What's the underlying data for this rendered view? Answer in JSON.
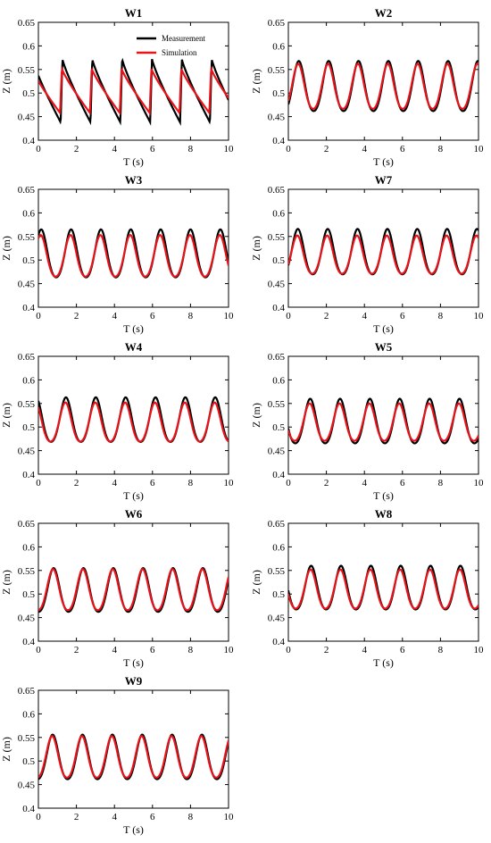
{
  "colors": {
    "measurement": "#000000",
    "simulation": "#e8141a"
  },
  "legend": {
    "measurement_label": "Measurement",
    "simulation_label": "Simulation"
  },
  "chart_data": [
    {
      "type": "line",
      "title": "W1",
      "xlabel": "T (s)",
      "ylabel": "Z (m)",
      "xlim": [
        0,
        10
      ],
      "ylim": [
        0.4,
        0.65
      ],
      "xticks": [
        "0",
        "2",
        "4",
        "6",
        "8",
        "10"
      ],
      "yticks": [
        "0.4",
        "0.45",
        "0.5",
        "0.55",
        "0.6",
        "0.65"
      ],
      "period": 1.57,
      "phase": 1.17,
      "waveform": "sawtooth",
      "series": [
        {
          "name": "Measurement",
          "crest": 0.572,
          "trough": 0.438
        },
        {
          "name": "Simulation",
          "crest": 0.552,
          "trough": 0.458
        }
      ]
    },
    {
      "type": "line",
      "title": "W2",
      "xlabel": "T (s)",
      "ylabel": "Z (m)",
      "xlim": [
        0,
        10
      ],
      "ylim": [
        0.4,
        0.65
      ],
      "xticks": [
        "0",
        "2",
        "4",
        "6",
        "8",
        "10"
      ],
      "yticks": [
        "0.4",
        "0.45",
        "0.5",
        "0.55",
        "0.6",
        "0.65"
      ],
      "period": 1.57,
      "phase": 0.55,
      "waveform": "wave",
      "series": [
        {
          "name": "Measurement",
          "crest": 0.568,
          "trough": 0.45
        },
        {
          "name": "Simulation",
          "crest": 0.562,
          "trough": 0.456
        }
      ]
    },
    {
      "type": "line",
      "title": "W3",
      "xlabel": "T (s)",
      "ylabel": "Z (m)",
      "xlim": [
        0,
        10
      ],
      "ylim": [
        0.4,
        0.65
      ],
      "xticks": [
        "0",
        "2",
        "4",
        "6",
        "8",
        "10"
      ],
      "yticks": [
        "0.4",
        "0.45",
        "0.5",
        "0.55",
        "0.6",
        "0.65"
      ],
      "period": 1.57,
      "phase": 0.15,
      "waveform": "wave",
      "series": [
        {
          "name": "Measurement",
          "crest": 0.565,
          "trough": 0.452
        },
        {
          "name": "Simulation",
          "crest": 0.553,
          "trough": 0.455
        }
      ]
    },
    {
      "type": "line",
      "title": "W7",
      "xlabel": "T (s)",
      "ylabel": "Z (m)",
      "xlim": [
        0,
        10
      ],
      "ylim": [
        0.4,
        0.65
      ],
      "xticks": [
        "0",
        "2",
        "4",
        "6",
        "8",
        "10"
      ],
      "yticks": [
        "0.4",
        "0.45",
        "0.5",
        "0.55",
        "0.6",
        "0.65"
      ],
      "period": 1.57,
      "phase": 0.5,
      "waveform": "wave",
      "series": [
        {
          "name": "Measurement",
          "crest": 0.566,
          "trough": 0.459
        },
        {
          "name": "Simulation",
          "crest": 0.552,
          "trough": 0.462
        }
      ]
    },
    {
      "type": "line",
      "title": "W4",
      "xlabel": "T (s)",
      "ylabel": "Z (m)",
      "xlim": [
        0,
        10
      ],
      "ylim": [
        0.4,
        0.65
      ],
      "xticks": [
        "0",
        "2",
        "4",
        "6",
        "8",
        "10"
      ],
      "yticks": [
        "0.4",
        "0.45",
        "0.5",
        "0.55",
        "0.6",
        "0.65"
      ],
      "period": 1.57,
      "phase": 1.45,
      "waveform": "wave",
      "series": [
        {
          "name": "Measurement",
          "crest": 0.563,
          "trough": 0.458
        },
        {
          "name": "Simulation",
          "crest": 0.552,
          "trough": 0.46
        }
      ]
    },
    {
      "type": "line",
      "title": "W5",
      "xlabel": "T (s)",
      "ylabel": "Z (m)",
      "xlim": [
        0,
        10
      ],
      "ylim": [
        0.4,
        0.65
      ],
      "xticks": [
        "0",
        "2",
        "4",
        "6",
        "8",
        "10"
      ],
      "yticks": [
        "0.4",
        "0.45",
        "0.5",
        "0.55",
        "0.6",
        "0.65"
      ],
      "period": 1.57,
      "phase": 1.15,
      "waveform": "wave",
      "series": [
        {
          "name": "Measurement",
          "crest": 0.56,
          "trough": 0.455
        },
        {
          "name": "Simulation",
          "crest": 0.55,
          "trough": 0.462
        }
      ]
    },
    {
      "type": "line",
      "title": "W6",
      "xlabel": "T (s)",
      "ylabel": "Z (m)",
      "xlim": [
        0,
        10
      ],
      "ylim": [
        0.4,
        0.65
      ],
      "xticks": [
        "0",
        "2",
        "4",
        "6",
        "8",
        "10"
      ],
      "yticks": [
        "0.4",
        "0.45",
        "0.5",
        "0.55",
        "0.6",
        "0.65"
      ],
      "period": 1.57,
      "phase": 0.8,
      "waveform": "wave",
      "series": [
        {
          "name": "Measurement",
          "crest": 0.555,
          "trough": 0.452
        },
        {
          "name": "Simulation",
          "crest": 0.553,
          "trough": 0.456
        }
      ]
    },
    {
      "type": "line",
      "title": "W8",
      "xlabel": "T (s)",
      "ylabel": "Z (m)",
      "xlim": [
        0,
        10
      ],
      "ylim": [
        0.4,
        0.65
      ],
      "xticks": [
        "0",
        "2",
        "4",
        "6",
        "8",
        "10"
      ],
      "yticks": [
        "0.4",
        "0.45",
        "0.5",
        "0.55",
        "0.6",
        "0.65"
      ],
      "period": 1.57,
      "phase": 1.2,
      "waveform": "wave",
      "series": [
        {
          "name": "Measurement",
          "crest": 0.56,
          "trough": 0.457
        },
        {
          "name": "Simulation",
          "crest": 0.552,
          "trough": 0.46
        }
      ]
    },
    {
      "type": "line",
      "title": "W9",
      "xlabel": "T (s)",
      "ylabel": "Z (m)",
      "xlim": [
        0,
        10
      ],
      "ylim": [
        0.4,
        0.65
      ],
      "xticks": [
        "0",
        "2",
        "4",
        "6",
        "8",
        "10"
      ],
      "yticks": [
        "0.4",
        "0.45",
        "0.5",
        "0.55",
        "0.6",
        "0.65"
      ],
      "period": 1.57,
      "phase": 0.75,
      "waveform": "wave",
      "series": [
        {
          "name": "Measurement",
          "crest": 0.556,
          "trough": 0.451
        },
        {
          "name": "Simulation",
          "crest": 0.553,
          "trough": 0.455
        }
      ]
    }
  ]
}
